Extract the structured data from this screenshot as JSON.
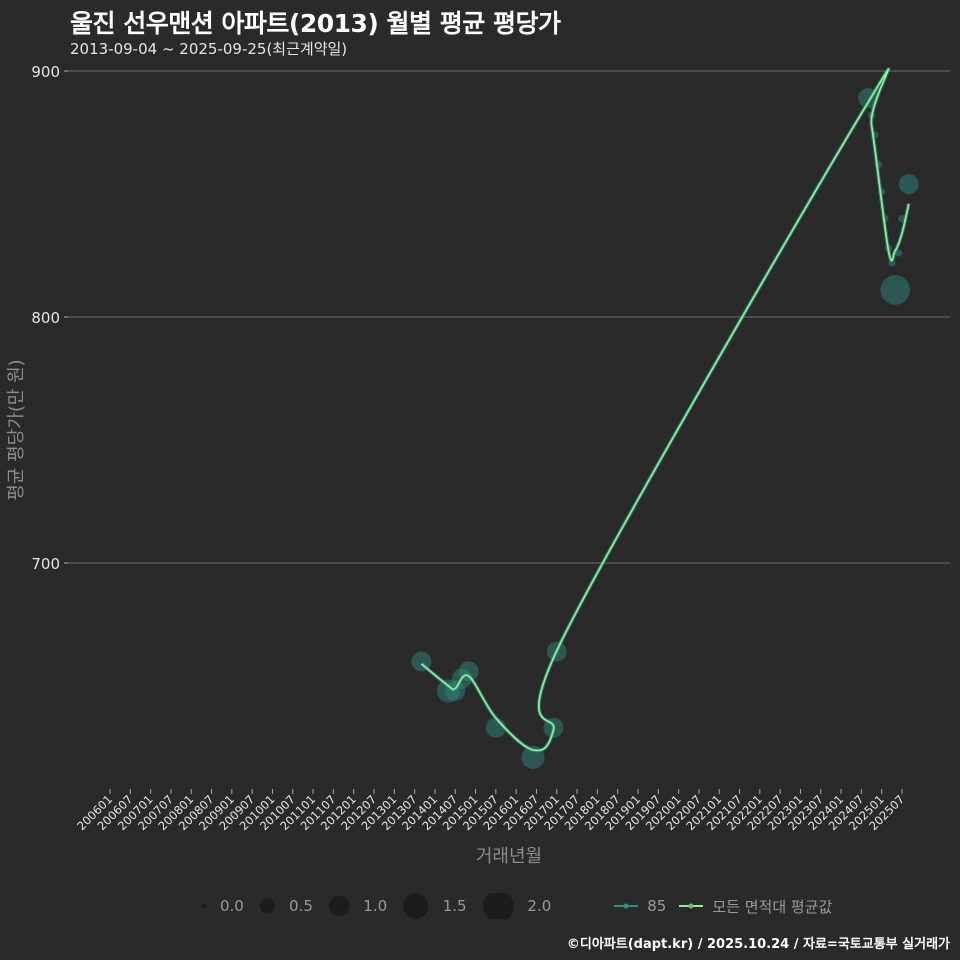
{
  "title": "울진 선우맨션 아파트(2013) 월별 평균 평당가",
  "subtitle": "2013-09-04 ~ 2025-09-25(최근계약일)",
  "footer": "©디아파트(dapt.kr) / 2025.10.24 / 자료=국토교통부 실거래가",
  "colors": {
    "background": "#2a2a2b",
    "series_85": "#2f8f83",
    "average_line": "#90ee90",
    "grid": "#707070"
  },
  "legend": {
    "size_title": "",
    "sizes": [
      "0.0",
      "0.5",
      "1.0",
      "1.5",
      "2.0"
    ],
    "series": [
      {
        "label": "85",
        "color": "#2f8f83"
      },
      {
        "label": "모든 면적대 평균값",
        "color": "#90ee90"
      }
    ]
  },
  "chart_data": {
    "type": "scatter",
    "title": "울진 선우맨션 아파트(2013) 월별 평균 평당가",
    "subtitle": "2013-09-04 ~ 2025-09-25(최근계약일)",
    "xlabel": "거래년월",
    "ylabel": "평균 평당가(만 원)",
    "ylim": [
      620,
      900
    ],
    "yticks": [
      700,
      800,
      900
    ],
    "xticks": [
      "200601",
      "200607",
      "200701",
      "200707",
      "200801",
      "200807",
      "200901",
      "200907",
      "201001",
      "201007",
      "201101",
      "201107",
      "201201",
      "201207",
      "201301",
      "201307",
      "201401",
      "201407",
      "201501",
      "201507",
      "201601",
      "201607",
      "201701",
      "201707",
      "201801",
      "201807",
      "201901",
      "201907",
      "202001",
      "202007",
      "202101",
      "202107",
      "202201",
      "202207",
      "202301",
      "202307",
      "202401",
      "202407",
      "202501",
      "202507"
    ],
    "grid": true,
    "legend_position": "bottom",
    "series": [
      {
        "name": "85",
        "kind": "bubble",
        "points": [
          {
            "x": "201309",
            "y": 660,
            "size": 1.0
          },
          {
            "x": "201405",
            "y": 648,
            "size": 1.2
          },
          {
            "x": "201407",
            "y": 648,
            "size": 1.0
          },
          {
            "x": "201409",
            "y": 653,
            "size": 1.0
          },
          {
            "x": "201411",
            "y": 656,
            "size": 1.0
          },
          {
            "x": "201507",
            "y": 633,
            "size": 1.0
          },
          {
            "x": "201606",
            "y": 621,
            "size": 1.2
          },
          {
            "x": "201612",
            "y": 633,
            "size": 1.0
          },
          {
            "x": "201701",
            "y": 664,
            "size": 1.0
          },
          {
            "x": "202409",
            "y": 889,
            "size": 1.0
          },
          {
            "x": "202410",
            "y": 882,
            "size": 0.2
          },
          {
            "x": "202411",
            "y": 874,
            "size": 0.2
          },
          {
            "x": "202412",
            "y": 862,
            "size": 0.2
          },
          {
            "x": "202501",
            "y": 851,
            "size": 0.2
          },
          {
            "x": "202502",
            "y": 840,
            "size": 0.2
          },
          {
            "x": "202503",
            "y": 828,
            "size": 0.2
          },
          {
            "x": "202504",
            "y": 822,
            "size": 0.2
          },
          {
            "x": "202505",
            "y": 811,
            "size": 1.6
          },
          {
            "x": "202506",
            "y": 826,
            "size": 0.2
          },
          {
            "x": "202507",
            "y": 840,
            "size": 0.2
          },
          {
            "x": "202509",
            "y": 854,
            "size": 1.0
          }
        ]
      },
      {
        "name": "모든 면적대 평균값",
        "kind": "line",
        "points": [
          {
            "x": "201309",
            "y": 659
          },
          {
            "x": "201405",
            "y": 650
          },
          {
            "x": "201407",
            "y": 649
          },
          {
            "x": "201411",
            "y": 654
          },
          {
            "x": "201507",
            "y": 637
          },
          {
            "x": "201606",
            "y": 624
          },
          {
            "x": "201612",
            "y": 632
          },
          {
            "x": "201703",
            "y": 670
          },
          {
            "x": "202408",
            "y": 885
          },
          {
            "x": "202410",
            "y": 878
          },
          {
            "x": "202503",
            "y": 827
          },
          {
            "x": "202505",
            "y": 827
          },
          {
            "x": "202507",
            "y": 834
          },
          {
            "x": "202509",
            "y": 846
          }
        ]
      }
    ]
  }
}
